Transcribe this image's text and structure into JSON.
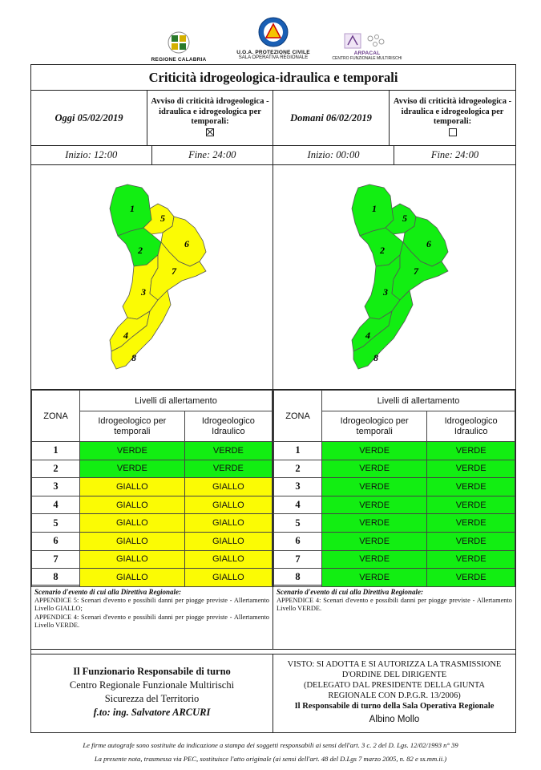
{
  "header": {
    "logo_left_caption": "REGIONE CALABRIA",
    "logo_center_caption": "U.O.A. PROTEZIONE CIVILE",
    "logo_center_sub": "SALA OPERATIVA REGIONALE",
    "logo_right_caption": "ARPACAL",
    "logo_right_sub": "CENTRO FUNZIONALE MULTIRISCHI"
  },
  "title": "Criticità idrogeologica-idraulica e temporali",
  "today": {
    "date_label": "Oggi 05/02/2019",
    "avviso": "Avviso di criticità idrogeologica - idraulica e idrogeologica per temporali:",
    "avviso_checked": true,
    "start": "Inizio: 12:00",
    "end": "Fine: 24:00"
  },
  "tomorrow": {
    "date_label": "Domani 06/02/2019",
    "avviso": "Avviso di criticità idrogeologica - idraulica e idrogeologica per temporali:",
    "avviso_checked": false,
    "start": "Inizio: 00:00",
    "end": "Fine: 24:00"
  },
  "colors": {
    "verde": "#12ee12",
    "giallo": "#fbfb04"
  },
  "map_today": {
    "1": "VERDE",
    "2": "VERDE",
    "3": "GIALLO",
    "4": "GIALLO",
    "5": "GIALLO",
    "6": "GIALLO",
    "7": "GIALLO",
    "8": "GIALLO"
  },
  "map_tomorrow": {
    "1": "VERDE",
    "2": "VERDE",
    "3": "VERDE",
    "4": "VERDE",
    "5": "VERDE",
    "6": "VERDE",
    "7": "VERDE",
    "8": "VERDE"
  },
  "table_headers": {
    "zona": "ZONA",
    "livelli": "Livelli di allertamento",
    "col1": "Idrogeologico per temporali",
    "col2": "Idrogeologico Idraulico"
  },
  "zones_today": [
    {
      "zona": "1",
      "temporali": "VERDE",
      "idraulico": "VERDE"
    },
    {
      "zona": "2",
      "temporali": "VERDE",
      "idraulico": "VERDE"
    },
    {
      "zona": "3",
      "temporali": "GIALLO",
      "idraulico": "GIALLO"
    },
    {
      "zona": "4",
      "temporali": "GIALLO",
      "idraulico": "GIALLO"
    },
    {
      "zona": "5",
      "temporali": "GIALLO",
      "idraulico": "GIALLO"
    },
    {
      "zona": "6",
      "temporali": "GIALLO",
      "idraulico": "GIALLO"
    },
    {
      "zona": "7",
      "temporali": "GIALLO",
      "idraulico": "GIALLO"
    },
    {
      "zona": "8",
      "temporali": "GIALLO",
      "idraulico": "GIALLO"
    }
  ],
  "zones_tomorrow": [
    {
      "zona": "1",
      "temporali": "VERDE",
      "idraulico": "VERDE"
    },
    {
      "zona": "2",
      "temporali": "VERDE",
      "idraulico": "VERDE"
    },
    {
      "zona": "3",
      "temporali": "VERDE",
      "idraulico": "VERDE"
    },
    {
      "zona": "4",
      "temporali": "VERDE",
      "idraulico": "VERDE"
    },
    {
      "zona": "5",
      "temporali": "VERDE",
      "idraulico": "VERDE"
    },
    {
      "zona": "6",
      "temporali": "VERDE",
      "idraulico": "VERDE"
    },
    {
      "zona": "7",
      "temporali": "VERDE",
      "idraulico": "VERDE"
    },
    {
      "zona": "8",
      "temporali": "VERDE",
      "idraulico": "VERDE"
    }
  ],
  "scenario_today": {
    "title": "Scenario d'evento di cui alla Direttiva Regionale:",
    "lines": [
      "APPENDICE 5: Scenari d'evento e possibili danni per piogge previste - Allertamento Livello GIALLO;",
      "APPENDICE 4: Scenari d'evento e possibili danni per piogge previste - Allertamento Livello VERDE."
    ]
  },
  "scenario_tomorrow": {
    "title": "Scenario d'evento di cui alla Direttiva Regionale:",
    "lines": [
      "APPENDICE 4: Scenari d'evento e possibili danni per piogge previste - Allertamento Livello VERDE."
    ]
  },
  "footer_left": {
    "line1": "Il Funzionario Responsabile di turno",
    "line2": "Centro Regionale Funzionale Multirischi",
    "line3": "Sicurezza del Territorio",
    "line4": "f.to: ing. Salvatore ARCURI"
  },
  "footer_right": {
    "line1": "VISTO: SI ADOTTA E SI AUTORIZZA LA TRASMISSIONE",
    "line2": "D'ORDINE DEL DIRIGENTE",
    "line3": "(DELEGATO DAL PRESIDENTE DELLA GIUNTA",
    "line4": "REGIONALE CON D.P.G.R. 13/2006)",
    "line5": "Il Responsabile di turno della Sala Operativa Regionale",
    "line6": "Albino Mollo"
  },
  "notes": {
    "note1": "Le firme autografe sono sostituite da indicazione a stampa dei soggetti responsabili ai sensi dell'art. 3 c. 2 del D. Lgs. 12/02/1993 n° 39",
    "note2": "La presente nota, trasmessa via PEC, sostituisce l'atto originale (ai sensi dell'art. 48 del D.Lgs 7 marzo 2005, n. 82 e ss.mm.ii.)"
  }
}
